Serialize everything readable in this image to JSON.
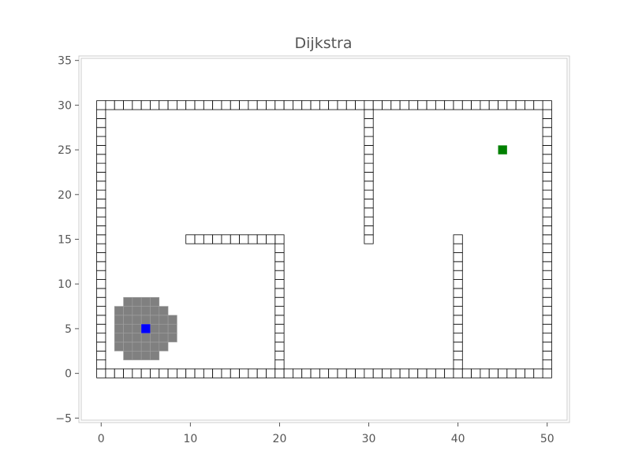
{
  "chart_data": {
    "type": "scatter",
    "title": "Dijkstra",
    "xlabel": "",
    "ylabel": "",
    "xlim": [
      -2.5,
      52.5
    ],
    "ylim": [
      -5.5,
      35.5
    ],
    "x_ticks": [
      0,
      10,
      20,
      30,
      40,
      50
    ],
    "y_ticks": [
      -5,
      0,
      5,
      10,
      15,
      20,
      25,
      30,
      35
    ],
    "x_tick_labels": [
      "0",
      "10",
      "20",
      "30",
      "40",
      "50"
    ],
    "y_tick_labels": [
      "−5",
      "0",
      "5",
      "10",
      "15",
      "20",
      "25",
      "30",
      "35"
    ],
    "grid": false,
    "legend": "none",
    "colors": {
      "obstacle_edge": "#000000",
      "obstacle_fill": "#ffffff",
      "explored": "#808080",
      "explored_grid": "#a0a0a0",
      "start": "#0000ff",
      "goal": "#008000",
      "frame": "#cccccc",
      "tick_text": "#555555"
    },
    "series": [
      {
        "kind": "obstacles",
        "marker": "square",
        "segments": [
          {
            "from": [
              0,
              0
            ],
            "to": [
              0,
              30
            ]
          },
          {
            "from": [
              50,
              0
            ],
            "to": [
              50,
              30
            ]
          },
          {
            "from": [
              0,
              0
            ],
            "to": [
              20,
              0
            ]
          },
          {
            "from": [
              20,
              0
            ],
            "to": [
              40,
              0
            ]
          },
          {
            "from": [
              40,
              0
            ],
            "to": [
              50,
              0
            ]
          },
          {
            "from": [
              0,
              30
            ],
            "to": [
              50,
              30
            ]
          },
          {
            "from": [
              20,
              0
            ],
            "to": [
              20,
              15
            ]
          },
          {
            "from": [
              10,
              15
            ],
            "to": [
              20,
              15
            ]
          },
          {
            "from": [
              30,
              15
            ],
            "to": [
              30,
              30
            ]
          },
          {
            "from": [
              40,
              0
            ],
            "to": [
              40,
              15
            ]
          }
        ]
      },
      {
        "kind": "explored",
        "marker": "square",
        "cells": [
          [
            3,
            2
          ],
          [
            4,
            2
          ],
          [
            5,
            2
          ],
          [
            6,
            2
          ],
          [
            2,
            3
          ],
          [
            3,
            3
          ],
          [
            4,
            3
          ],
          [
            5,
            3
          ],
          [
            6,
            3
          ],
          [
            7,
            3
          ],
          [
            2,
            4
          ],
          [
            3,
            4
          ],
          [
            4,
            4
          ],
          [
            5,
            4
          ],
          [
            6,
            4
          ],
          [
            7,
            4
          ],
          [
            8,
            4
          ],
          [
            2,
            5
          ],
          [
            3,
            5
          ],
          [
            4,
            5
          ],
          [
            5,
            5
          ],
          [
            6,
            5
          ],
          [
            7,
            5
          ],
          [
            8,
            5
          ],
          [
            2,
            6
          ],
          [
            3,
            6
          ],
          [
            4,
            6
          ],
          [
            5,
            6
          ],
          [
            6,
            6
          ],
          [
            7,
            6
          ],
          [
            8,
            6
          ],
          [
            2,
            7
          ],
          [
            3,
            7
          ],
          [
            4,
            7
          ],
          [
            5,
            7
          ],
          [
            6,
            7
          ],
          [
            7,
            7
          ],
          [
            3,
            8
          ],
          [
            4,
            8
          ],
          [
            5,
            8
          ],
          [
            6,
            8
          ]
        ]
      },
      {
        "kind": "start",
        "marker": "square",
        "x": 5,
        "y": 5
      },
      {
        "kind": "goal",
        "marker": "square",
        "x": 45,
        "y": 25
      }
    ]
  }
}
